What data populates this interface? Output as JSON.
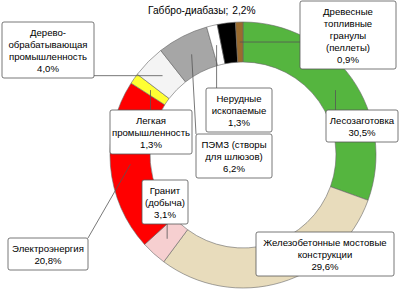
{
  "chart_data": {
    "type": "pie",
    "categories": [
      "Лесозаготовка",
      "Железобетонные мостовые конструкции",
      "Гранит (добыча)",
      "Электроэнергия",
      "Легкая промышленность",
      "Дерево-обрабатывающая промышленность",
      "ПЭМЗ (створы для шлюзов)",
      "Нерудные ископаемые",
      "Габбро-диабазы;",
      "Древесные топливные гранулы (пеллеты)"
    ],
    "values": [
      30.5,
      29.6,
      3.1,
      20.8,
      1.3,
      4.0,
      6.2,
      1.3,
      2.2,
      0.9
    ],
    "value_labels": [
      "30,5%",
      "29,6%",
      "3,1%",
      "20,8%",
      "1,3%",
      "4,0%",
      "6,2%",
      "1,3%",
      "2,2%",
      "0,9%"
    ],
    "colors": [
      "#55b53f",
      "#e8dcbc",
      "#f6cfd0",
      "#ff0000",
      "#ffff33",
      "#f4f4f4",
      "#a6a6a6",
      "#ffffff",
      "#000000",
      "#9a6b2e"
    ],
    "data_labels": true
  }
}
